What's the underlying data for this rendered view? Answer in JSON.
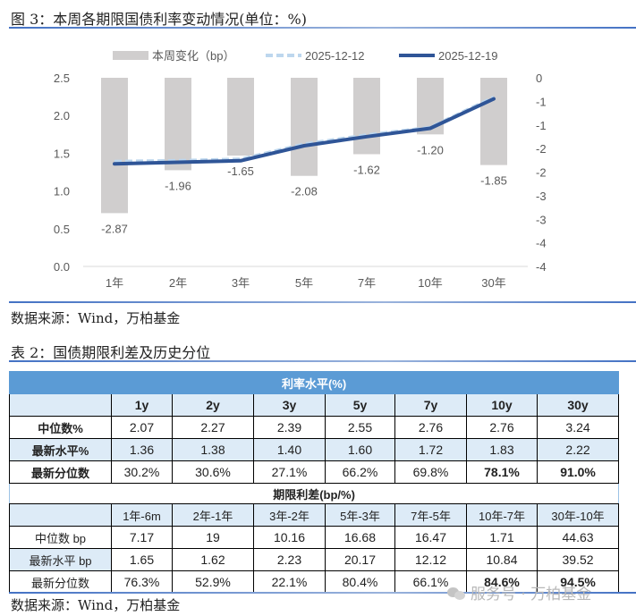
{
  "figure": {
    "caption": "图 3：本周各期限国债利率变动情况(单位：%)",
    "source": "数据来源：Wind，万柏基金"
  },
  "legend": {
    "bar_label": "本周变化（bp）",
    "prev_label": "2025-12-12",
    "curr_label": "2025-12-19"
  },
  "chart_data": {
    "type": "bar+line",
    "title": "本周各期限国债利率变动情况(单位：%)",
    "categories": [
      "1年",
      "2年",
      "3年",
      "5年",
      "7年",
      "10年",
      "30年"
    ],
    "series": [
      {
        "name": "本周变化（bp）",
        "type": "bar",
        "axis": "right",
        "values": [
          -2.87,
          -1.96,
          -1.65,
          -2.08,
          -1.62,
          -1.2,
          -1.85
        ],
        "color": "#d0cece"
      },
      {
        "name": "2025-12-12",
        "type": "line",
        "style": "dashed",
        "axis": "left",
        "values": [
          1.39,
          1.4,
          1.42,
          1.62,
          1.74,
          1.84,
          2.24
        ],
        "color": "#bdd7ee"
      },
      {
        "name": "2025-12-19",
        "type": "line",
        "style": "solid",
        "axis": "left",
        "values": [
          1.36,
          1.38,
          1.4,
          1.6,
          1.72,
          1.83,
          2.22
        ],
        "color": "#2f5597"
      }
    ],
    "bar_data_labels": [
      "-2.87",
      "-1.96",
      "-1.65",
      "-2.08",
      "-1.62",
      "-1.20",
      "-1.85"
    ],
    "left_axis": {
      "ylim": [
        0,
        2.5
      ],
      "ticks": [
        "0.0",
        "0.5",
        "1.0",
        "1.5",
        "2.0",
        "2.5"
      ]
    },
    "right_axis": {
      "ylim": [
        -4,
        0
      ],
      "ticks": [
        "0",
        "-1",
        "-1",
        "-2",
        "-2",
        "-3",
        "-3",
        "-4",
        "-4"
      ]
    },
    "xlabel": "",
    "ylabel": "",
    "grid": false,
    "legend_position": "top"
  },
  "table": {
    "caption": "表 2：国债期限利差及历史分位",
    "source": "数据来源：Wind，万柏基金",
    "rates": {
      "title": "利率水平(%)",
      "columns": [
        "",
        "1y",
        "2y",
        "3y",
        "5y",
        "7y",
        "10y",
        "30y"
      ],
      "rows": [
        {
          "label": "中位数%",
          "values": [
            "2.07",
            "2.27",
            "2.39",
            "2.55",
            "2.76",
            "2.76",
            "3.24"
          ]
        },
        {
          "label": "最新水平%",
          "values": [
            "1.36",
            "1.38",
            "1.40",
            "1.60",
            "1.72",
            "1.83",
            "2.22"
          ]
        },
        {
          "label": "最新分位数",
          "values": [
            "30.2%",
            "30.6%",
            "27.1%",
            "66.2%",
            "69.8%",
            "78.1%",
            "91.0%"
          ]
        }
      ]
    },
    "spreads": {
      "title": "期限利差(bp/%)",
      "columns": [
        "",
        "1年-6m",
        "2年-1年",
        "3年-2年",
        "5年-3年",
        "7年-5年",
        "10年-7年",
        "30年-10年"
      ],
      "rows": [
        {
          "label": "中位数 bp",
          "values": [
            "7.17",
            "19",
            "10.16",
            "16.68",
            "16.47",
            "1.71",
            "44.63"
          ]
        },
        {
          "label": "最新水平 bp",
          "values": [
            "1.65",
            "1.62",
            "2.23",
            "20.17",
            "12.12",
            "10.84",
            "39.52"
          ]
        },
        {
          "label": "最新分位数",
          "values": [
            "76.3%",
            "52.9%",
            "22.1%",
            "80.4%",
            "66.1%",
            "84.6%",
            "94.5%"
          ]
        }
      ]
    }
  },
  "watermark": "服务号 · 万柏基金",
  "colors": {
    "bar": "#d0cece",
    "line_curr": "#2f5597",
    "line_prev": "#bdd7ee",
    "table_header": "#5b9bd5",
    "table_shade": "#ddebf7",
    "rule": "#4472c4"
  }
}
